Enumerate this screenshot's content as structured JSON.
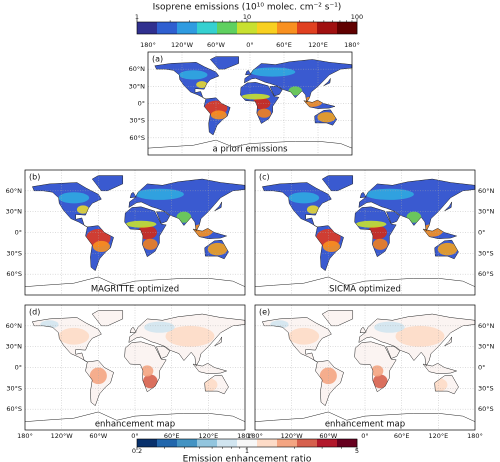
{
  "top_colorbar": {
    "title": "Isoprene emissions (10¹⁰ molec. cm⁻² s⁻¹)",
    "scale": "log",
    "lim": [
      1,
      100
    ],
    "ticks": [
      1,
      10,
      100
    ],
    "colors": [
      "#30308f",
      "#2f5fd0",
      "#2f9be0",
      "#35d0d0",
      "#5fd060",
      "#c8e030",
      "#f8d020",
      "#f89020",
      "#e04020",
      "#a01010",
      "#600000"
    ]
  },
  "bottom_colorbar": {
    "title": "Emission enhancement ratio",
    "scale": "log",
    "lim": [
      0.2,
      5
    ],
    "ticks": [
      0.2,
      1,
      5
    ],
    "colors": [
      "#08306b",
      "#2166ac",
      "#4393c3",
      "#92c5de",
      "#d1e5f0",
      "#f7f7f7",
      "#fddbc7",
      "#f4a582",
      "#d6604d",
      "#b2182b",
      "#67001f"
    ]
  },
  "panels": [
    {
      "label": "(a)",
      "caption": "a priori emissions"
    },
    {
      "label": "(b)",
      "caption": "MAGRITTE optimized"
    },
    {
      "label": "(c)",
      "caption": "SICMA optimized"
    },
    {
      "label": "(d)",
      "caption": "enhancement map"
    },
    {
      "label": "(e)",
      "caption": "enhancement map"
    }
  ],
  "lon_labels": [
    "180°",
    "120°W",
    "60°W",
    "0°",
    "60°E",
    "120°E",
    "180°"
  ],
  "lat_labels": [
    "60°N",
    "30°N",
    "0°",
    "30°S",
    "60°S"
  ]
}
